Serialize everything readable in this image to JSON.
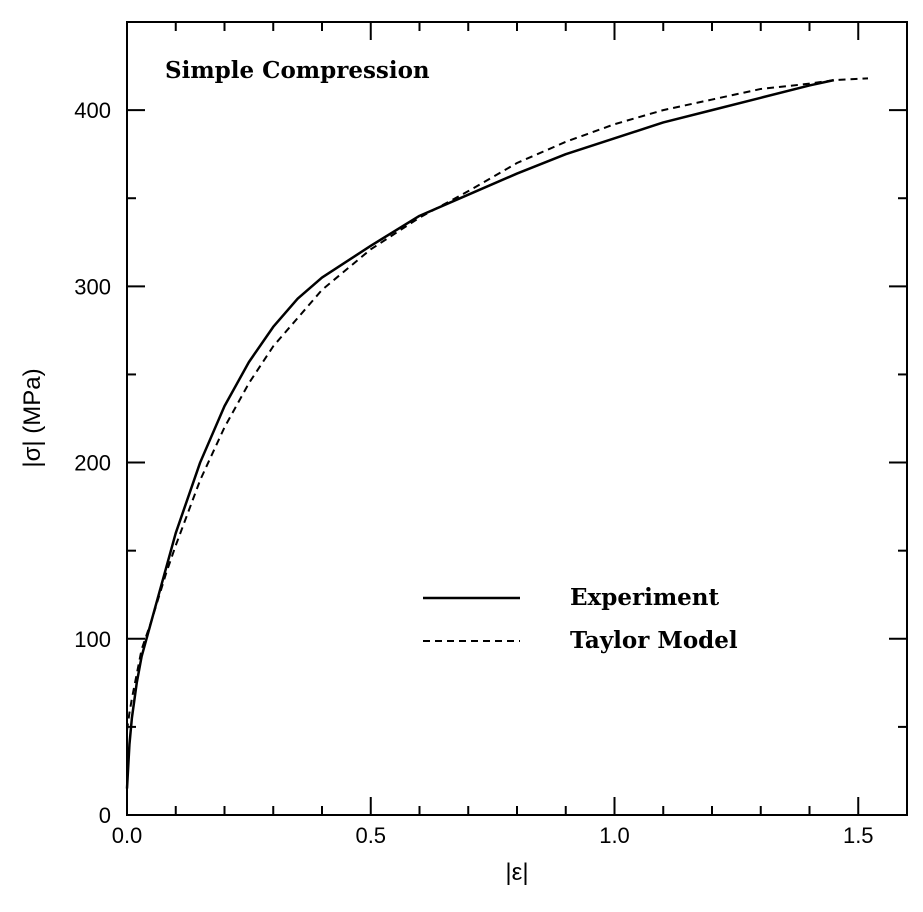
{
  "chart_data": {
    "type": "line",
    "title": "Simple Compression",
    "xlabel": "|ε|",
    "ylabel": "|σ| (MPa)",
    "xlim": [
      0,
      1.6
    ],
    "ylim": [
      0,
      450
    ],
    "xticks": [
      0.0,
      0.5,
      1.0,
      1.5
    ],
    "xtick_labels": [
      "0.0",
      "0.5",
      "1.0",
      "1.5"
    ],
    "yticks": [
      0,
      100,
      200,
      300,
      400
    ],
    "ytick_labels": [
      "0",
      "100",
      "200",
      "300",
      "400"
    ],
    "x_minor_step": 0.1,
    "y_minor_step": 50,
    "grid": false,
    "legend_position": "lower-right",
    "series": [
      {
        "name": "Experiment",
        "style": "solid",
        "x": [
          0.0,
          0.005,
          0.01,
          0.02,
          0.03,
          0.05,
          0.08,
          0.1,
          0.15,
          0.2,
          0.25,
          0.3,
          0.35,
          0.4,
          0.5,
          0.6,
          0.7,
          0.8,
          0.9,
          1.0,
          1.1,
          1.2,
          1.3,
          1.4,
          1.45
        ],
        "y": [
          15,
          40,
          55,
          75,
          90,
          110,
          140,
          160,
          200,
          232,
          257,
          277,
          293,
          305,
          323,
          340,
          352,
          364,
          375,
          384,
          393,
          400,
          407,
          414,
          417
        ]
      },
      {
        "name": "Taylor Model",
        "style": "dashed",
        "x": [
          0.0,
          0.005,
          0.01,
          0.02,
          0.03,
          0.05,
          0.08,
          0.1,
          0.15,
          0.2,
          0.25,
          0.3,
          0.35,
          0.4,
          0.5,
          0.6,
          0.7,
          0.8,
          0.9,
          1.0,
          1.1,
          1.2,
          1.3,
          1.4,
          1.45,
          1.52
        ],
        "y": [
          48,
          58,
          66,
          80,
          94,
          110,
          137,
          153,
          190,
          220,
          245,
          266,
          282,
          298,
          321,
          339,
          354,
          370,
          382,
          392,
          400,
          406,
          412,
          415,
          417,
          418
        ]
      }
    ]
  }
}
